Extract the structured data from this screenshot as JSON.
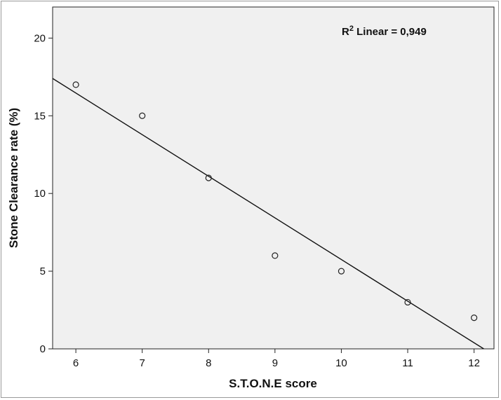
{
  "chart_data": {
    "type": "scatter",
    "xlabel": "S.T.O.N.E score",
    "ylabel": "Stone Clearance rate (%)",
    "xlim": [
      5.65,
      12.3
    ],
    "ylim": [
      0,
      22
    ],
    "x_ticks": [
      6,
      7,
      8,
      9,
      10,
      11,
      12
    ],
    "y_ticks": [
      0,
      5,
      10,
      15,
      20
    ],
    "points": [
      {
        "x": 6,
        "y": 17
      },
      {
        "x": 7,
        "y": 15
      },
      {
        "x": 8,
        "y": 11
      },
      {
        "x": 9,
        "y": 6
      },
      {
        "x": 10,
        "y": 5
      },
      {
        "x": 11,
        "y": 3
      },
      {
        "x": 12,
        "y": 2
      }
    ],
    "fit_line": {
      "type": "linear",
      "slope": -2.6786,
      "intercept": 32.536
    },
    "annotation": {
      "r_prefix": "R",
      "r_sup": "2",
      "text": " Linear = 0,949"
    },
    "grid": false,
    "colors": {
      "plot_bg": "#f0f0f0",
      "frame": "#9a9a9a",
      "marker": "#222222",
      "line": "#111111"
    }
  }
}
